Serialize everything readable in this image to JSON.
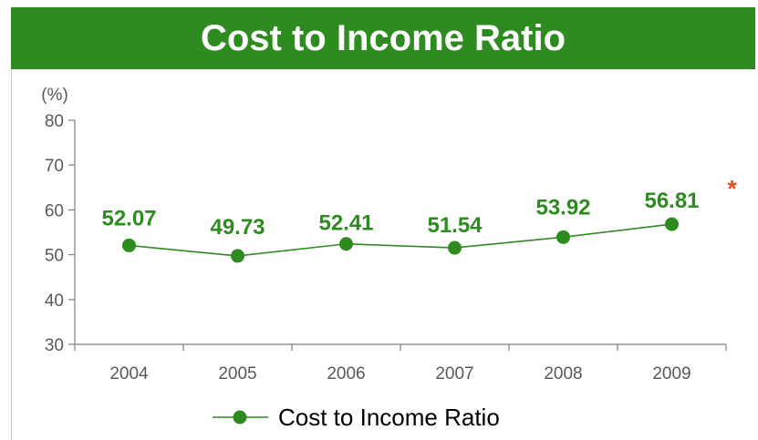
{
  "chart_data": {
    "type": "line",
    "title": "Cost to Income Ratio",
    "unit_label": "(%)",
    "categories": [
      "2004",
      "2005",
      "2006",
      "2007",
      "2008",
      "2009"
    ],
    "series": [
      {
        "name": "Cost to Income Ratio",
        "values": [
          52.07,
          49.73,
          52.41,
          51.54,
          53.92,
          56.81
        ],
        "labels": [
          "52.07",
          "49.73",
          "52.41",
          "51.54",
          "53.92",
          "56.81"
        ]
      }
    ],
    "ylim": [
      30,
      80
    ],
    "yticks": [
      30,
      40,
      50,
      60,
      70,
      80
    ],
    "annotation": "*",
    "legend_position": "bottom-center",
    "grid": false,
    "colors": {
      "series": "#2e8b1f",
      "annotation": "#e8481c",
      "title_bg": "#2e8b1f",
      "axis": "#595959"
    }
  }
}
